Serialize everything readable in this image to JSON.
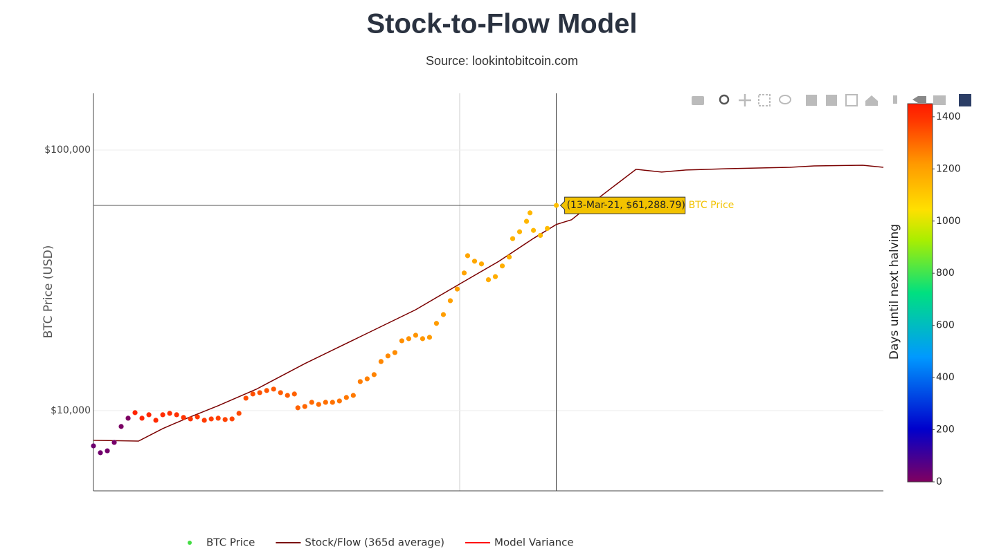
{
  "chart_data": {
    "type": "scatter",
    "title": "Stock-to-Flow Model",
    "subtitle": "Source: lookintobitcoin.com",
    "y_label": "BTC Price (USD)",
    "log_y": true,
    "grid": true,
    "xlim": [
      0,
      570
    ],
    "ylim": [
      4920,
      165000
    ],
    "yticks": [
      {
        "value": 10000,
        "label": "$10,000"
      },
      {
        "value": 100000,
        "label": "$100,000"
      }
    ],
    "colorbar": {
      "title": "Days until next halving",
      "lim": [
        0,
        1450
      ],
      "ticks": [
        0,
        200,
        400,
        600,
        800,
        1000,
        1200,
        1400
      ],
      "colorscale": [
        [
          0,
          "#800060"
        ],
        [
          0.14,
          "#0000cc"
        ],
        [
          0.33,
          "#0099ff"
        ],
        [
          0.5,
          "#00e080"
        ],
        [
          0.64,
          "#aaee00"
        ],
        [
          0.72,
          "#ffe000"
        ],
        [
          0.84,
          "#ff9a00"
        ],
        [
          0.96,
          "#ff3300"
        ],
        [
          1,
          "#ff1a00"
        ]
      ]
    },
    "hover": {
      "x": 334,
      "y": 61288.79,
      "label": "(13-Mar-21, $61,288.79)",
      "color": "#f2c200"
    },
    "series": [
      {
        "name": "BTC Price",
        "type": "scatter",
        "color": "#44dd44",
        "x": [
          0,
          5,
          10,
          15,
          20,
          25,
          30,
          35,
          40,
          45,
          50,
          55,
          60,
          65,
          70,
          75,
          80,
          85,
          90,
          95,
          100,
          105,
          110,
          115,
          120,
          125,
          130,
          135,
          140,
          145,
          147.5,
          152.5,
          157.5,
          162.5,
          167.5,
          172.5,
          177.5,
          182.5,
          187.5,
          192.5,
          197.5,
          202.5,
          207.5,
          212.5,
          217.5,
          222.5,
          227.5,
          232.5,
          237.5,
          242.5,
          247.5,
          252.5,
          257.5,
          262.5,
          267.5,
          270,
          275,
          280,
          285,
          290,
          295,
          300,
          302.5,
          307.5,
          312.5,
          315,
          317.5,
          322.5,
          327.5,
          334
        ],
        "values": [
          7320,
          6890,
          7010,
          7550,
          8690,
          9350,
          9820,
          9350,
          9640,
          9180,
          9640,
          9760,
          9640,
          9410,
          9290,
          9460,
          9180,
          9290,
          9350,
          9240,
          9290,
          9760,
          11160,
          11580,
          11720,
          11940,
          12090,
          11720,
          11440,
          11580,
          10250,
          10370,
          10760,
          10560,
          10760,
          10760,
          10890,
          11230,
          11440,
          12920,
          13240,
          13740,
          15430,
          16210,
          16700,
          18530,
          18880,
          19460,
          18880,
          19110,
          21610,
          23360,
          26410,
          29270,
          33740,
          39300,
          37440,
          36550,
          31780,
          32660,
          35900,
          38830,
          45690,
          48550,
          53240,
          57390,
          49150,
          47030,
          50010,
          61288.79
        ],
        "color_values": [
          30,
          25,
          20,
          15,
          10,
          5,
          1430,
          1425,
          1420,
          1415,
          1410,
          1405,
          1400,
          1395,
          1390,
          1385,
          1380,
          1375,
          1370,
          1365,
          1360,
          1355,
          1350,
          1345,
          1340,
          1335,
          1330,
          1325,
          1320,
          1315,
          1312.5,
          1307.5,
          1302.5,
          1297.5,
          1292.5,
          1287.5,
          1282.5,
          1277.5,
          1272.5,
          1267.5,
          1262.5,
          1257.5,
          1252.5,
          1247.5,
          1242.5,
          1237.5,
          1232.5,
          1227.5,
          1222.5,
          1217.5,
          1212.5,
          1207.5,
          1202.5,
          1197.5,
          1192.5,
          1190,
          1185,
          1180,
          1175,
          1170,
          1165,
          1160,
          1157.5,
          1152.5,
          1147.5,
          1145,
          1142.5,
          1137.5,
          1132.5,
          1126
        ]
      },
      {
        "name": "Stock/Flow (365d average)",
        "type": "line",
        "color": "#7a0000",
        "x": [
          0,
          32.5,
          50,
          67.5,
          90,
          117.5,
          152.5,
          192.5,
          232.5,
          265,
          292.5,
          317.5,
          334,
          345,
          367.5,
          391.5,
          410,
          427.5,
          457.5,
          502.5,
          520,
          555,
          570
        ],
        "values": [
          7690,
          7640,
          8530,
          9350,
          10440,
          12080,
          15150,
          19210,
          24380,
          30780,
          37390,
          45810,
          51780,
          54000,
          67350,
          84300,
          82300,
          83800,
          84800,
          85800,
          86900,
          87400,
          85800
        ]
      },
      {
        "name": "Model Variance",
        "type": "line",
        "color": "#ff0000"
      }
    ]
  }
}
